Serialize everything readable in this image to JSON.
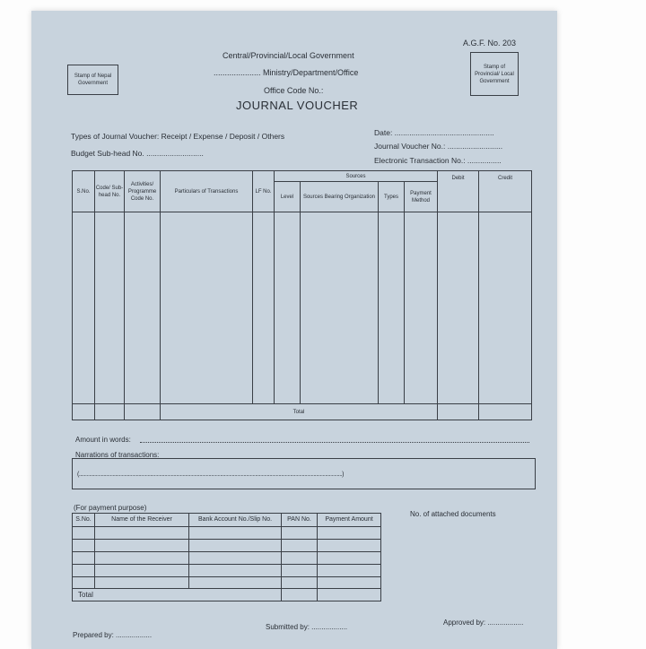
{
  "form_number": "A.G.F. No. 203",
  "stamp_left": "Stamp of Nepal Government",
  "stamp_right": "Stamp of Provincial/ Local Government",
  "header": {
    "line1": "Central/Provincial/Local Government",
    "line2": "..................... Ministry/Department/Office",
    "line3": "Office Code No.:",
    "title": "JOURNAL VOUCHER"
  },
  "fields": {
    "voucher_types": "Types of Journal Voucher: Receipt / Expense / Deposit / Others",
    "budget_subhead": "Budget Sub-head No. ...........................",
    "date": "Date: ...............................................",
    "voucher_no": "Journal Voucher No.: ..........................",
    "etn": "Electronic Transaction No.: ................"
  },
  "main_table": {
    "headers": [
      "S.No.",
      "Code/ Sub-head No.",
      "Activities/ Programme Code No.",
      "Particulars of Transactions",
      "LF No.",
      "Level",
      "Sources Bearing Organization",
      "Types",
      "Payment Method",
      "Debit",
      "Credit"
    ],
    "group_header": "Sources",
    "total_label": "Total"
  },
  "amount_in_words": "Amount in words:",
  "narrations_label": "Narrations of transactions:",
  "narration_line": "(...........................................................................................................................................................................................................)",
  "payment": {
    "caption": "(For payment purpose)",
    "headers": [
      "S.No.",
      "Name of the Receiver",
      "Bank Account No./Slip No.",
      "PAN No.",
      "Payment Amount"
    ],
    "total_label": "Total"
  },
  "attached_docs": "No. of attached documents",
  "signatures": {
    "prepared": "Prepared by: ..................",
    "submitted": "Submitted by: ..................",
    "approved": "Approved by: .................."
  }
}
